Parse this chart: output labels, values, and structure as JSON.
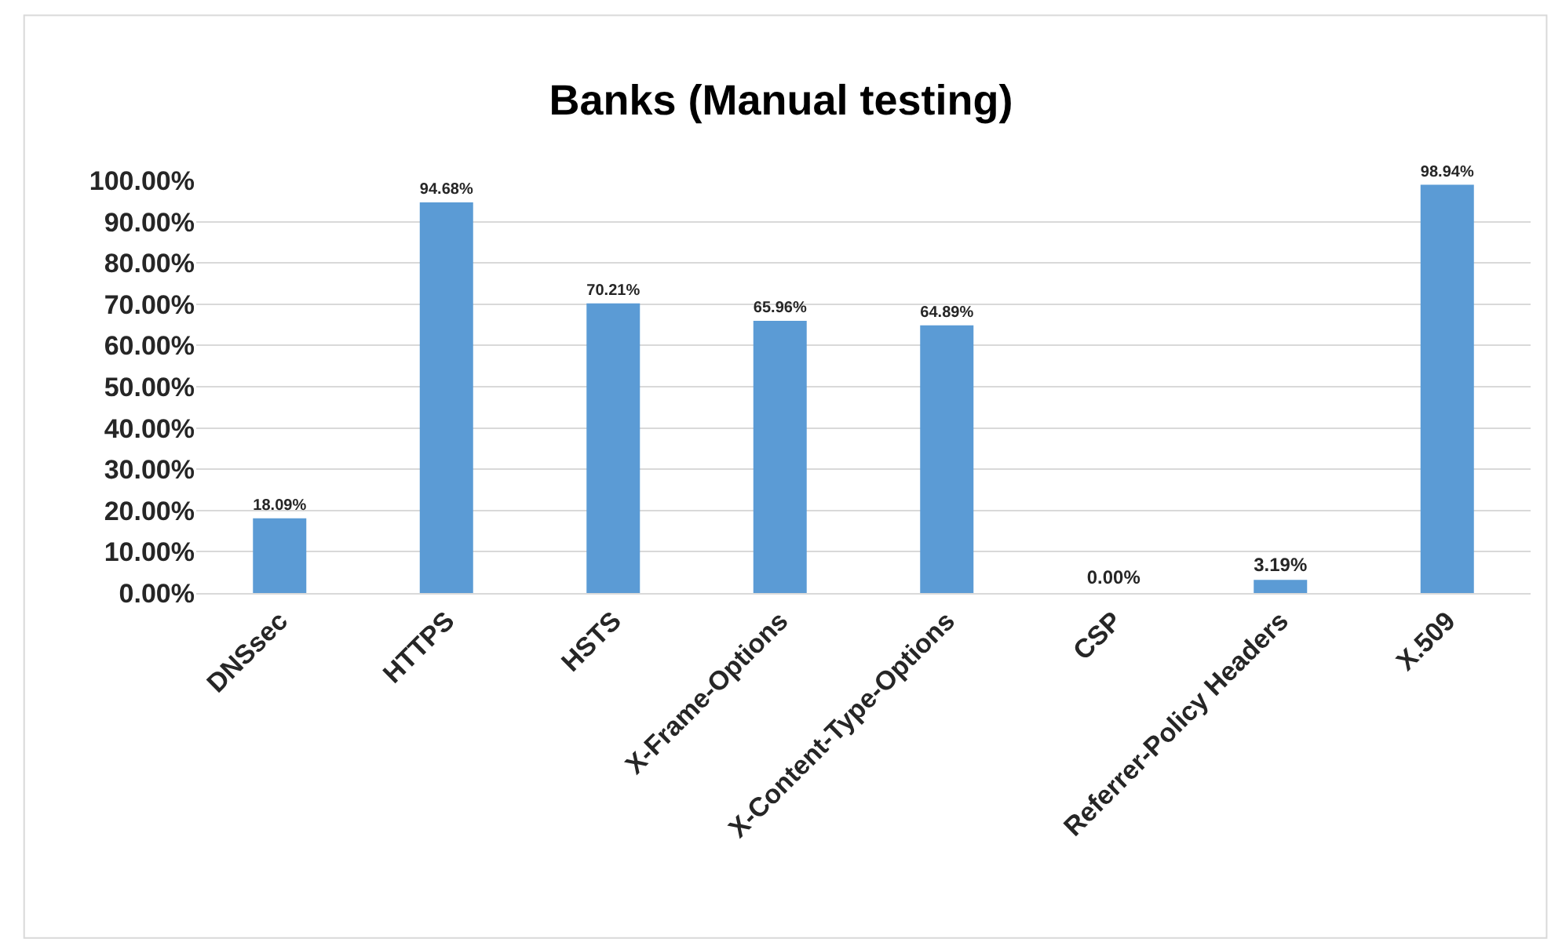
{
  "chart_data": {
    "type": "bar",
    "title": "Banks (Manual testing)",
    "categories": [
      "DNSsec",
      "HTTPS",
      "HSTS",
      "X-Frame-Options",
      "X-Content-Type-Options",
      "CSP",
      "Referrer-Policy Headers",
      "X.509"
    ],
    "values": [
      18.09,
      94.68,
      70.21,
      65.96,
      64.89,
      0,
      3.19,
      98.94
    ],
    "value_labels": [
      "18.09%",
      "94.68%",
      "70.21%",
      "65.96%",
      "64.89%",
      "0.00%",
      "3.19%",
      "98.94%"
    ],
    "color": "#5b9bd5",
    "ylim": [
      0,
      100
    ],
    "yticks": [
      {
        "value": 0,
        "label": "0.00%"
      },
      {
        "value": 10,
        "label": "10.00%"
      },
      {
        "value": 20,
        "label": "20.00%"
      },
      {
        "value": 30,
        "label": "30.00%"
      },
      {
        "value": 40,
        "label": "40.00%"
      },
      {
        "value": 50,
        "label": "50.00%"
      },
      {
        "value": 60,
        "label": "60.00%"
      },
      {
        "value": 70,
        "label": "70.00%"
      },
      {
        "value": 80,
        "label": "80.00%"
      },
      {
        "value": 90,
        "label": "90.00%"
      },
      {
        "value": 100,
        "label": "100.00%"
      }
    ],
    "grid": "y"
  }
}
